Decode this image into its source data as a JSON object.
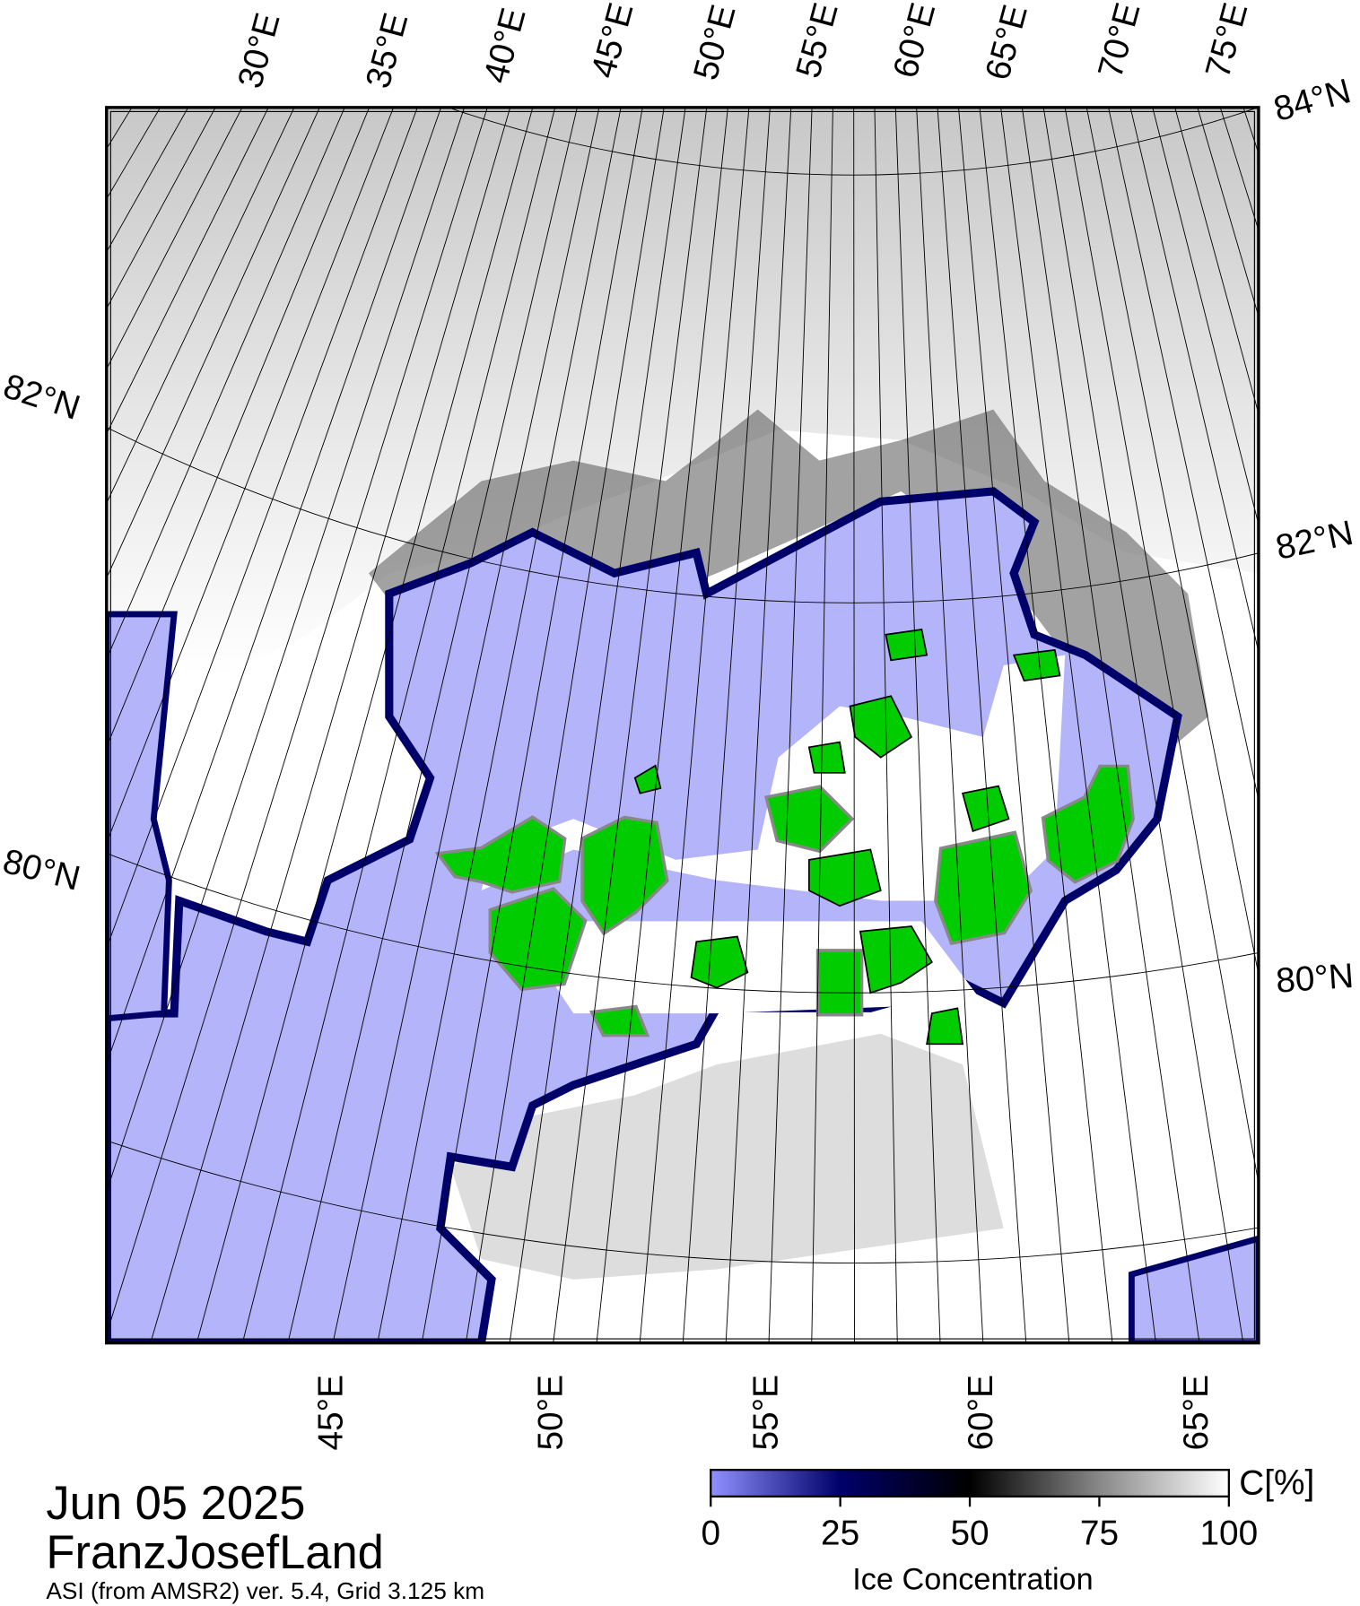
{
  "map": {
    "top_longitude_labels": [
      "30°E",
      "35°E",
      "40°E",
      "45°E",
      "50°E",
      "55°E",
      "60°E",
      "65°E",
      "70°E",
      "75°E"
    ],
    "bottom_longitude_labels": [
      "45°E",
      "50°E",
      "55°E",
      "60°E",
      "65°E"
    ],
    "left_latitude_labels": [
      "82°N",
      "80°N"
    ],
    "right_latitude_labels": [
      "84°N",
      "82°N",
      "80°N"
    ]
  },
  "title": {
    "date": "Jun 05 2025",
    "region": "FranzJosefLand",
    "source": "ASI (from AMSR2) ver. 5.4,  Grid 3.125 km"
  },
  "colorbar": {
    "label": "Ice Concentration",
    "unit": "C[%]",
    "range": [
      0,
      100
    ],
    "ticks": [
      0,
      25,
      50,
      75,
      100
    ]
  }
}
